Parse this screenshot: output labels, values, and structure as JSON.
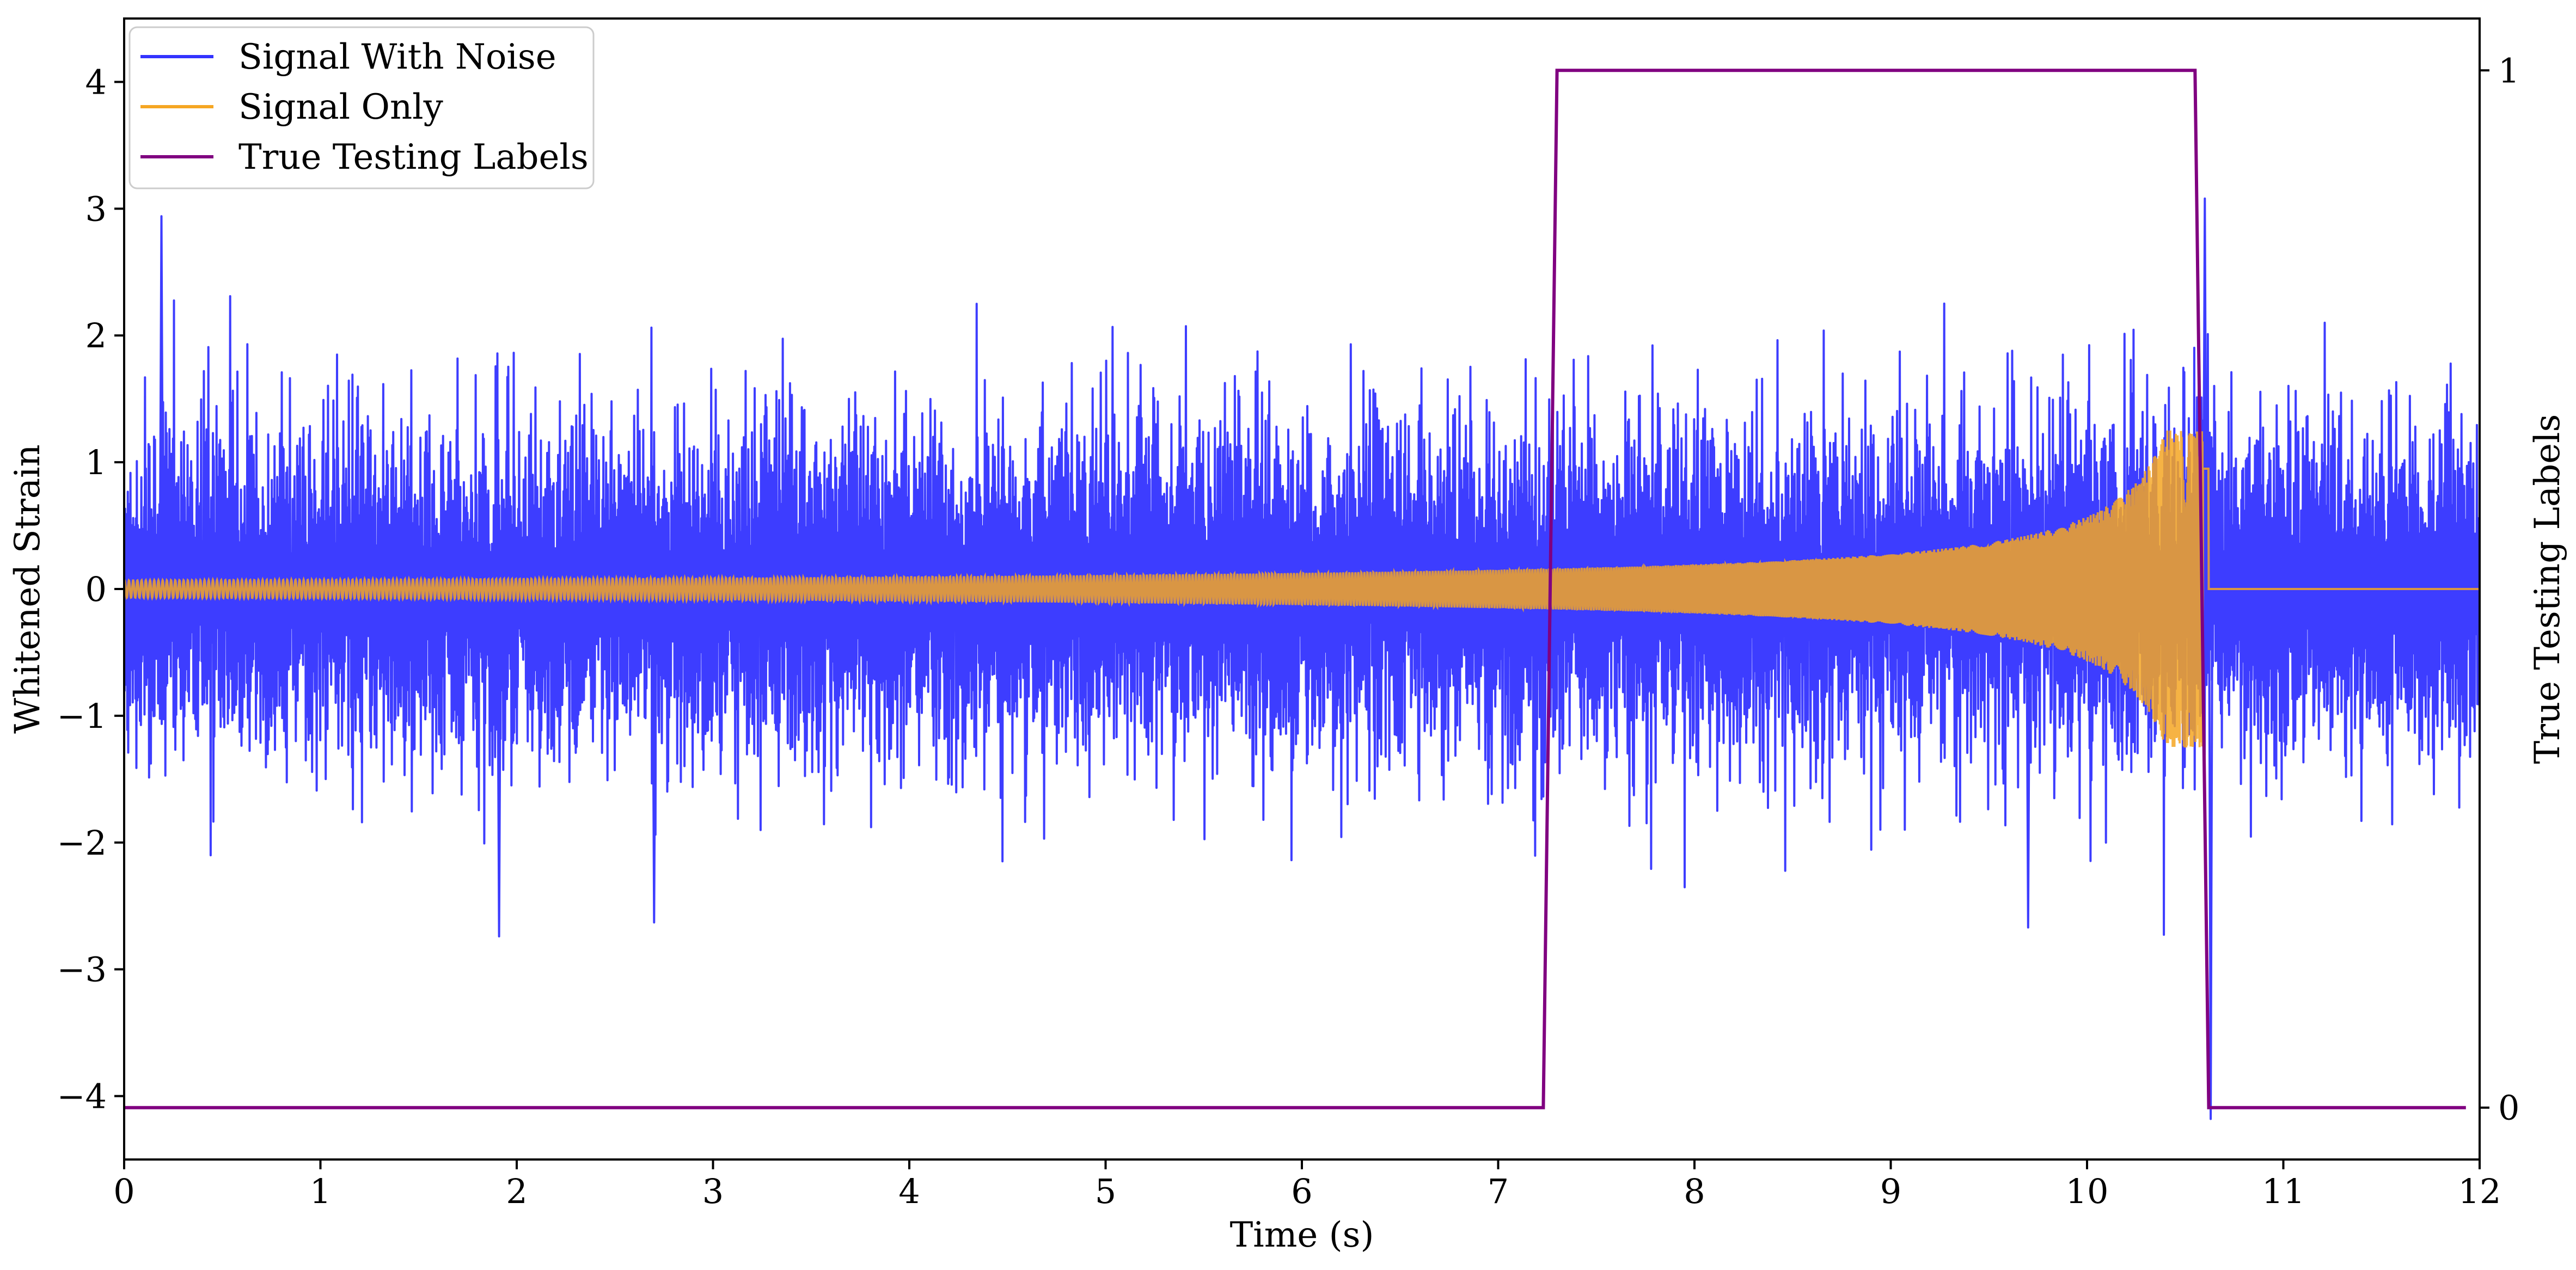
{
  "chart_data": {
    "type": "line",
    "title": "",
    "xlabel": "Time (s)",
    "ylabel": "Whitened Strain",
    "y2label": "True Testing Labels",
    "xlim": [
      0,
      12
    ],
    "ylim": [
      -4.5,
      4.5
    ],
    "y2lim": [
      -0.05,
      1.05
    ],
    "x_ticks": [
      "0",
      "1",
      "2",
      "3",
      "4",
      "5",
      "6",
      "7",
      "8",
      "9",
      "10",
      "11",
      "12"
    ],
    "y_ticks": [
      "−4",
      "−3",
      "−2",
      "−1",
      "0",
      "1",
      "2",
      "3",
      "4"
    ],
    "y2_ticks": [
      "0",
      "1"
    ],
    "grid": false,
    "legend_position": "top-left",
    "series": [
      {
        "name": "Signal With Noise",
        "color": "#3333ff",
        "axis": "left",
        "kind": "noise+chirp",
        "noise_envelope": [
          -1.5,
          1.5
        ],
        "x_range": [
          0,
          12
        ],
        "peak_values": [
          {
            "x": 0.19,
            "y": 2.94
          },
          {
            "x": 1.91,
            "y": -2.74
          },
          {
            "x": 2.7,
            "y": -2.63
          },
          {
            "x": 9.7,
            "y": -2.67
          },
          {
            "x": 10.6,
            "y": 3.08
          },
          {
            "x": 10.63,
            "y": -4.18
          }
        ]
      },
      {
        "name": "Signal Only",
        "color": "#f5a623",
        "axis": "left",
        "kind": "chirp",
        "x_range": [
          0,
          12
        ],
        "merger_x": 10.62,
        "amplitude_at_start": 0.05,
        "amplitude_at_7.3": 0.13,
        "amplitude_at_9": 0.25,
        "amplitude_at_10": 0.45,
        "amplitude_at_merger": 1.25
      },
      {
        "name": "True Testing Labels",
        "color": "#800080",
        "axis": "right",
        "kind": "step",
        "x": [
          0,
          7.23,
          7.3,
          10.55,
          10.62,
          11.93
        ],
        "y": [
          0,
          0,
          1,
          1,
          0,
          0
        ]
      }
    ]
  }
}
